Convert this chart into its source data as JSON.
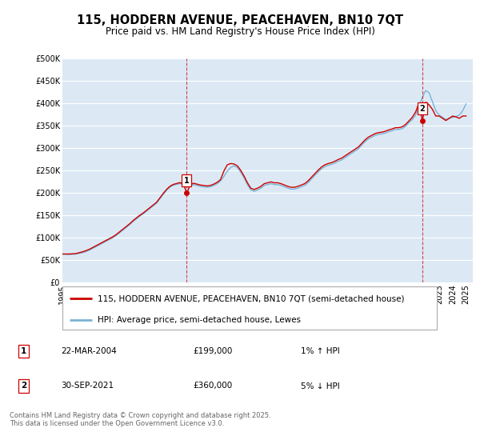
{
  "title": "115, HODDERN AVENUE, PEACEHAVEN, BN10 7QT",
  "subtitle": "Price paid vs. HM Land Registry's House Price Index (HPI)",
  "ylim": [
    0,
    500000
  ],
  "xlim_start": 1995,
  "xlim_end": 2025.5,
  "yticks": [
    0,
    50000,
    100000,
    150000,
    200000,
    250000,
    300000,
    350000,
    400000,
    450000,
    500000
  ],
  "ytick_labels": [
    "£0",
    "£50K",
    "£100K",
    "£150K",
    "£200K",
    "£250K",
    "£300K",
    "£350K",
    "£400K",
    "£450K",
    "£500K"
  ],
  "xticks": [
    1995,
    1996,
    1997,
    1998,
    1999,
    2000,
    2001,
    2002,
    2003,
    2004,
    2005,
    2006,
    2007,
    2008,
    2009,
    2010,
    2011,
    2012,
    2013,
    2014,
    2015,
    2016,
    2017,
    2018,
    2019,
    2020,
    2021,
    2022,
    2023,
    2024,
    2025
  ],
  "background_color": "#ffffff",
  "plot_bg_color": "#dce9f5",
  "grid_color": "#ffffff",
  "red_line_color": "#cc0000",
  "blue_line_color": "#7ab3d4",
  "marker1_x": 2004.22,
  "marker1_y": 199000,
  "marker2_x": 2021.75,
  "marker2_y": 360000,
  "vline1_x": 2004.22,
  "vline2_x": 2021.75,
  "legend_line1": "115, HODDERN AVENUE, PEACEHAVEN, BN10 7QT (semi-detached house)",
  "legend_line2": "HPI: Average price, semi-detached house, Lewes",
  "annot1_label": "1",
  "annot1_date": "22-MAR-2004",
  "annot1_price": "£199,000",
  "annot1_hpi": "1% ↑ HPI",
  "annot2_label": "2",
  "annot2_date": "30-SEP-2021",
  "annot2_price": "£360,000",
  "annot2_hpi": "5% ↓ HPI",
  "footer": "Contains HM Land Registry data © Crown copyright and database right 2025.\nThis data is licensed under the Open Government Licence v3.0.",
  "title_fontsize": 10.5,
  "subtitle_fontsize": 8.5,
  "tick_fontsize": 7,
  "legend_fontsize": 7.5,
  "annot_fontsize": 7.5,
  "footer_fontsize": 6,
  "hpi_data_x": [
    1995.0,
    1995.25,
    1995.5,
    1995.75,
    1996.0,
    1996.25,
    1996.5,
    1996.75,
    1997.0,
    1997.25,
    1997.5,
    1997.75,
    1998.0,
    1998.25,
    1998.5,
    1998.75,
    1999.0,
    1999.25,
    1999.5,
    1999.75,
    2000.0,
    2000.25,
    2000.5,
    2000.75,
    2001.0,
    2001.25,
    2001.5,
    2001.75,
    2002.0,
    2002.25,
    2002.5,
    2002.75,
    2003.0,
    2003.25,
    2003.5,
    2003.75,
    2004.0,
    2004.25,
    2004.5,
    2004.75,
    2005.0,
    2005.25,
    2005.5,
    2005.75,
    2006.0,
    2006.25,
    2006.5,
    2006.75,
    2007.0,
    2007.25,
    2007.5,
    2007.75,
    2008.0,
    2008.25,
    2008.5,
    2008.75,
    2009.0,
    2009.25,
    2009.5,
    2009.75,
    2010.0,
    2010.25,
    2010.5,
    2010.75,
    2011.0,
    2011.25,
    2011.5,
    2011.75,
    2012.0,
    2012.25,
    2012.5,
    2012.75,
    2013.0,
    2013.25,
    2013.5,
    2013.75,
    2014.0,
    2014.25,
    2014.5,
    2014.75,
    2015.0,
    2015.25,
    2015.5,
    2015.75,
    2016.0,
    2016.25,
    2016.5,
    2016.75,
    2017.0,
    2017.25,
    2017.5,
    2017.75,
    2018.0,
    2018.25,
    2018.5,
    2018.75,
    2019.0,
    2019.25,
    2019.5,
    2019.75,
    2020.0,
    2020.25,
    2020.5,
    2020.75,
    2021.0,
    2021.25,
    2021.5,
    2021.75,
    2022.0,
    2022.25,
    2022.5,
    2022.75,
    2023.0,
    2023.25,
    2023.5,
    2023.75,
    2024.0,
    2024.25,
    2024.5,
    2024.75,
    2025.0
  ],
  "hpi_data_y": [
    63000,
    62500,
    62000,
    62500,
    63000,
    64500,
    66000,
    68500,
    71500,
    75500,
    79500,
    83500,
    87500,
    91500,
    95500,
    99500,
    104500,
    110500,
    116500,
    122500,
    128500,
    135500,
    141500,
    147500,
    152500,
    158500,
    164500,
    170500,
    176500,
    186500,
    196500,
    205500,
    212500,
    216500,
    218500,
    220500,
    216500,
    213000,
    215000,
    218000,
    216000,
    214000,
    213000,
    212000,
    213000,
    216000,
    220000,
    226000,
    236000,
    248000,
    256000,
    260000,
    256000,
    246000,
    233000,
    218000,
    206000,
    203000,
    206000,
    210000,
    216000,
    218000,
    220000,
    218000,
    218000,
    216000,
    213000,
    210000,
    208000,
    208000,
    210000,
    213000,
    216000,
    222000,
    230000,
    238000,
    246000,
    253000,
    258000,
    261000,
    263000,
    266000,
    270000,
    273000,
    278000,
    283000,
    288000,
    293000,
    298000,
    306000,
    314000,
    320000,
    324000,
    328000,
    330000,
    331000,
    333000,
    336000,
    338000,
    341000,
    341000,
    343000,
    348000,
    356000,
    363000,
    373000,
    393000,
    413000,
    428000,
    423000,
    403000,
    383000,
    373000,
    368000,
    363000,
    366000,
    368000,
    370000,
    373000,
    383000,
    398000
  ],
  "price_data_x": [
    1995.0,
    1995.25,
    1995.5,
    1995.75,
    1996.0,
    1996.25,
    1996.5,
    1996.75,
    1997.0,
    1997.25,
    1997.5,
    1997.75,
    1998.0,
    1998.25,
    1998.5,
    1998.75,
    1999.0,
    1999.25,
    1999.5,
    1999.75,
    2000.0,
    2000.25,
    2000.5,
    2000.75,
    2001.0,
    2001.25,
    2001.5,
    2001.75,
    2002.0,
    2002.25,
    2002.5,
    2002.75,
    2003.0,
    2003.25,
    2003.5,
    2003.75,
    2004.0,
    2004.25,
    2004.5,
    2004.75,
    2005.0,
    2005.25,
    2005.5,
    2005.75,
    2006.0,
    2006.25,
    2006.5,
    2006.75,
    2007.0,
    2007.25,
    2007.5,
    2007.75,
    2008.0,
    2008.25,
    2008.5,
    2008.75,
    2009.0,
    2009.25,
    2009.5,
    2009.75,
    2010.0,
    2010.25,
    2010.5,
    2010.75,
    2011.0,
    2011.25,
    2011.5,
    2011.75,
    2012.0,
    2012.25,
    2012.5,
    2012.75,
    2013.0,
    2013.25,
    2013.5,
    2013.75,
    2014.0,
    2014.25,
    2014.5,
    2014.75,
    2015.0,
    2015.25,
    2015.5,
    2015.75,
    2016.0,
    2016.25,
    2016.5,
    2016.75,
    2017.0,
    2017.25,
    2017.5,
    2017.75,
    2018.0,
    2018.25,
    2018.5,
    2018.75,
    2019.0,
    2019.25,
    2019.5,
    2019.75,
    2020.0,
    2020.25,
    2020.5,
    2020.75,
    2021.0,
    2021.25,
    2021.5,
    2021.75,
    2022.0,
    2022.25,
    2022.5,
    2022.75,
    2023.0,
    2023.25,
    2023.5,
    2023.75,
    2024.0,
    2024.25,
    2024.5,
    2024.75,
    2025.0
  ],
  "price_data_y": [
    63000,
    63000,
    63000,
    63500,
    64000,
    66000,
    68000,
    70500,
    73500,
    77500,
    81500,
    85500,
    89500,
    93500,
    97500,
    101500,
    106500,
    112500,
    118500,
    124500,
    130500,
    137500,
    143500,
    149500,
    154500,
    160500,
    166500,
    172500,
    178500,
    188500,
    198500,
    207500,
    214500,
    218500,
    220500,
    222500,
    218500,
    199000,
    218000,
    221000,
    219000,
    217000,
    216000,
    215000,
    216000,
    219000,
    223000,
    229000,
    248000,
    262000,
    265000,
    264000,
    260000,
    250000,
    237000,
    222000,
    210000,
    207000,
    210000,
    214000,
    220000,
    222000,
    224000,
    222000,
    222000,
    220000,
    217000,
    214000,
    212000,
    212000,
    214000,
    217000,
    220000,
    226000,
    234000,
    242000,
    250000,
    257000,
    262000,
    265000,
    267000,
    270000,
    274000,
    277000,
    282000,
    287000,
    292000,
    297000,
    302000,
    310000,
    318000,
    324000,
    328000,
    332000,
    334000,
    335000,
    337000,
    340000,
    342000,
    345000,
    345000,
    347000,
    352000,
    360000,
    368000,
    380000,
    400000,
    360000,
    402000,
    396000,
    386000,
    371000,
    371000,
    366000,
    361000,
    366000,
    371000,
    369000,
    366000,
    371000,
    371000
  ]
}
